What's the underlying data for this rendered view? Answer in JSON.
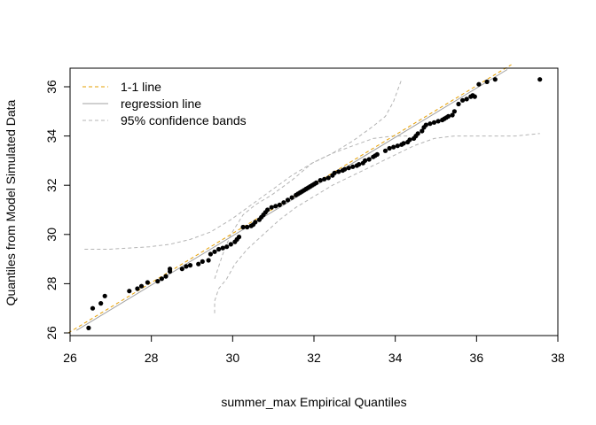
{
  "chart_data": {
    "type": "scatter",
    "title": "",
    "xlabel": "summer_max Empirical Quantiles",
    "ylabel": "Quantiles from Model Simulated Data",
    "xlim": [
      26,
      38
    ],
    "ylim": [
      26,
      36.7
    ],
    "x_ticks": [
      "26",
      "28",
      "30",
      "32",
      "34",
      "36",
      "38"
    ],
    "y_ticks": [
      "26",
      "28",
      "30",
      "32",
      "34",
      "36"
    ],
    "legend": {
      "position": "top-left",
      "entries": [
        {
          "label": "1-1 line",
          "color": "#E69F00",
          "style": "dashed"
        },
        {
          "label": "regression line",
          "color": "#A0A0A0",
          "style": "solid"
        },
        {
          "label": "95% confidence bands",
          "color": "#B4B4B4",
          "style": "dashed"
        }
      ]
    },
    "one_to_one": [
      [
        26,
        26
      ],
      [
        36.9,
        36.9
      ]
    ],
    "regression": [
      [
        26.2,
        26.1
      ],
      [
        36.8,
        36.7
      ]
    ],
    "conf_upper": [
      [
        29.6,
        28.2
      ],
      [
        29.8,
        29.2
      ],
      [
        30.0,
        30.0
      ],
      [
        30.3,
        30.8
      ],
      [
        30.6,
        31.2
      ],
      [
        31.0,
        31.6
      ],
      [
        31.5,
        32.2
      ],
      [
        32.0,
        32.9
      ],
      [
        32.5,
        33.3
      ],
      [
        33.0,
        33.8
      ],
      [
        33.5,
        34.4
      ],
      [
        33.8,
        34.8
      ],
      [
        34.0,
        35.4
      ],
      [
        34.2,
        36.3
      ]
    ],
    "conf_lower": [
      [
        29.6,
        26.8
      ],
      [
        29.6,
        27.3
      ],
      [
        29.7,
        27.8
      ],
      [
        29.9,
        28.2
      ],
      [
        30.1,
        28.8
      ],
      [
        30.4,
        29.4
      ],
      [
        30.8,
        30.0
      ],
      [
        31.2,
        30.6
      ],
      [
        31.6,
        31.1
      ],
      [
        32.0,
        31.5
      ],
      [
        32.5,
        32.0
      ],
      [
        33.0,
        32.4
      ],
      [
        33.5,
        32.8
      ],
      [
        34.0,
        33.2
      ],
      [
        34.5,
        33.6
      ],
      [
        35.0,
        33.9
      ],
      [
        35.5,
        34.0
      ],
      [
        36.0,
        34.0
      ],
      [
        37.0,
        34.0
      ],
      [
        37.6,
        34.1
      ]
    ],
    "conf_lower_left": [
      [
        26.4,
        29.4
      ],
      [
        27.0,
        29.4
      ],
      [
        27.5,
        29.45
      ],
      [
        28.0,
        29.5
      ],
      [
        28.5,
        29.6
      ],
      [
        29.0,
        29.8
      ],
      [
        29.5,
        30.1
      ],
      [
        30.0,
        30.6
      ],
      [
        30.5,
        31.2
      ],
      [
        31.0,
        31.8
      ],
      [
        31.5,
        32.4
      ],
      [
        32.0,
        32.9
      ],
      [
        32.5,
        33.3
      ],
      [
        33.0,
        33.6
      ],
      [
        33.5,
        33.9
      ],
      [
        34.0,
        34.0
      ],
      [
        34.4,
        34.0
      ]
    ],
    "points": [
      [
        26.5,
        26.2
      ],
      [
        26.6,
        27.0
      ],
      [
        26.8,
        27.2
      ],
      [
        26.9,
        27.5
      ],
      [
        27.5,
        27.7
      ],
      [
        27.7,
        27.8
      ],
      [
        27.8,
        27.9
      ],
      [
        27.95,
        28.05
      ],
      [
        28.2,
        28.1
      ],
      [
        28.3,
        28.2
      ],
      [
        28.4,
        28.3
      ],
      [
        28.5,
        28.5
      ],
      [
        28.5,
        28.6
      ],
      [
        28.8,
        28.6
      ],
      [
        28.9,
        28.7
      ],
      [
        29.0,
        28.75
      ],
      [
        29.2,
        28.8
      ],
      [
        29.3,
        28.9
      ],
      [
        29.45,
        28.95
      ],
      [
        29.5,
        29.2
      ],
      [
        29.6,
        29.3
      ],
      [
        29.7,
        29.4
      ],
      [
        29.8,
        29.45
      ],
      [
        29.9,
        29.5
      ],
      [
        30.0,
        29.6
      ],
      [
        30.1,
        29.7
      ],
      [
        30.15,
        29.8
      ],
      [
        30.2,
        29.9
      ],
      [
        30.3,
        30.3
      ],
      [
        30.4,
        30.3
      ],
      [
        30.5,
        30.35
      ],
      [
        30.55,
        30.4
      ],
      [
        30.6,
        30.5
      ],
      [
        30.7,
        30.6
      ],
      [
        30.75,
        30.7
      ],
      [
        30.8,
        30.8
      ],
      [
        30.85,
        30.9
      ],
      [
        30.9,
        31.0
      ],
      [
        31.0,
        31.1
      ],
      [
        31.1,
        31.15
      ],
      [
        31.2,
        31.2
      ],
      [
        31.3,
        31.3
      ],
      [
        31.4,
        31.4
      ],
      [
        31.5,
        31.5
      ],
      [
        31.6,
        31.6
      ],
      [
        31.65,
        31.65
      ],
      [
        31.7,
        31.7
      ],
      [
        31.75,
        31.75
      ],
      [
        31.8,
        31.8
      ],
      [
        31.85,
        31.85
      ],
      [
        31.9,
        31.9
      ],
      [
        31.95,
        31.95
      ],
      [
        32.0,
        32.0
      ],
      [
        32.05,
        32.05
      ],
      [
        32.1,
        32.1
      ],
      [
        32.2,
        32.2
      ],
      [
        32.3,
        32.25
      ],
      [
        32.4,
        32.3
      ],
      [
        32.5,
        32.4
      ],
      [
        32.55,
        32.5
      ],
      [
        32.65,
        32.55
      ],
      [
        32.75,
        32.6
      ],
      [
        32.8,
        32.65
      ],
      [
        32.9,
        32.7
      ],
      [
        33.0,
        32.75
      ],
      [
        33.1,
        32.8
      ],
      [
        33.15,
        32.85
      ],
      [
        33.25,
        32.9
      ],
      [
        33.3,
        33.0
      ],
      [
        33.4,
        33.05
      ],
      [
        33.5,
        33.15
      ],
      [
        33.55,
        33.2
      ],
      [
        33.6,
        33.25
      ],
      [
        33.8,
        33.4
      ],
      [
        33.9,
        33.5
      ],
      [
        34.0,
        33.55
      ],
      [
        34.1,
        33.6
      ],
      [
        34.2,
        33.65
      ],
      [
        34.25,
        33.7
      ],
      [
        34.35,
        33.75
      ],
      [
        34.4,
        33.85
      ],
      [
        34.5,
        33.9
      ],
      [
        34.55,
        34.0
      ],
      [
        34.6,
        34.1
      ],
      [
        34.7,
        34.2
      ],
      [
        34.75,
        34.35
      ],
      [
        34.8,
        34.45
      ],
      [
        34.9,
        34.5
      ],
      [
        35.0,
        34.55
      ],
      [
        35.1,
        34.6
      ],
      [
        35.2,
        34.65
      ],
      [
        35.25,
        34.7
      ],
      [
        35.3,
        34.75
      ],
      [
        35.35,
        34.8
      ],
      [
        35.45,
        34.85
      ],
      [
        35.5,
        35.0
      ],
      [
        35.6,
        35.3
      ],
      [
        35.7,
        35.45
      ],
      [
        35.8,
        35.5
      ],
      [
        35.9,
        35.6
      ],
      [
        35.95,
        35.65
      ],
      [
        36.0,
        35.6
      ],
      [
        36.1,
        36.1
      ],
      [
        36.3,
        36.2
      ],
      [
        36.5,
        36.3
      ],
      [
        37.6,
        36.3
      ]
    ]
  }
}
